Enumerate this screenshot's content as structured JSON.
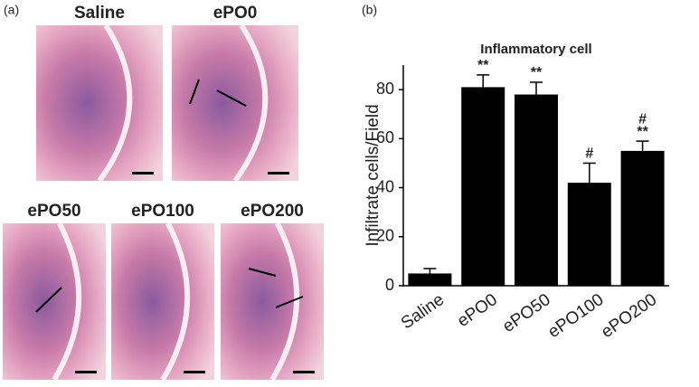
{
  "panel_a": {
    "label": "(a)",
    "images": [
      "Saline",
      "ePO0",
      "ePO50",
      "ePO100",
      "ePO200"
    ]
  },
  "panel_b_label": "(b)",
  "chart_data": {
    "type": "bar",
    "title": "Inflammatory cell",
    "y_label": "Infiltrate cells/Field",
    "categories": [
      "Saline",
      "ePO0",
      "ePO50",
      "ePO100",
      "ePO200"
    ],
    "values": [
      5,
      81,
      78,
      42,
      55
    ],
    "errors": [
      2,
      5,
      5,
      8,
      4
    ],
    "significance": [
      null,
      [
        "**"
      ],
      [
        "**"
      ],
      [
        "#"
      ],
      [
        "#",
        "**"
      ]
    ],
    "color": "#000000",
    "ylim": [
      0,
      90
    ],
    "yticks": [
      0,
      20,
      40,
      60,
      80
    ]
  }
}
